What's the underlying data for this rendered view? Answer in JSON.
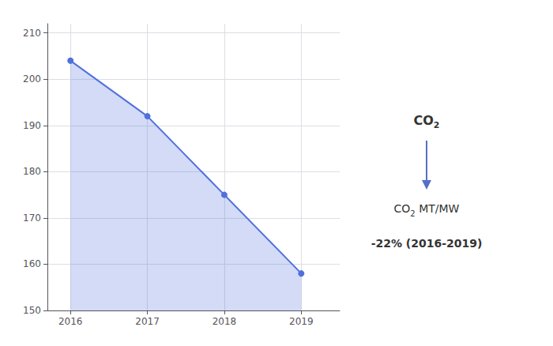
{
  "chart_data": {
    "type": "line",
    "x": [
      2016,
      2017,
      2018,
      2019
    ],
    "values": [
      204,
      192,
      175,
      158
    ],
    "xlim": [
      2015.7,
      2019.5
    ],
    "xticks": [
      2016,
      2017,
      2018,
      2019
    ],
    "ylim": [
      150,
      212
    ],
    "yticks": [
      150,
      160,
      170,
      180,
      190,
      200,
      210
    ],
    "grid": true,
    "marker": "circle",
    "annotations": [
      {
        "text": "CO",
        "sub": "2"
      },
      {
        "text": "CO",
        "sub": "2",
        "after": " MT/MW"
      },
      {
        "text": "-22% (2016-2019)"
      }
    ]
  }
}
